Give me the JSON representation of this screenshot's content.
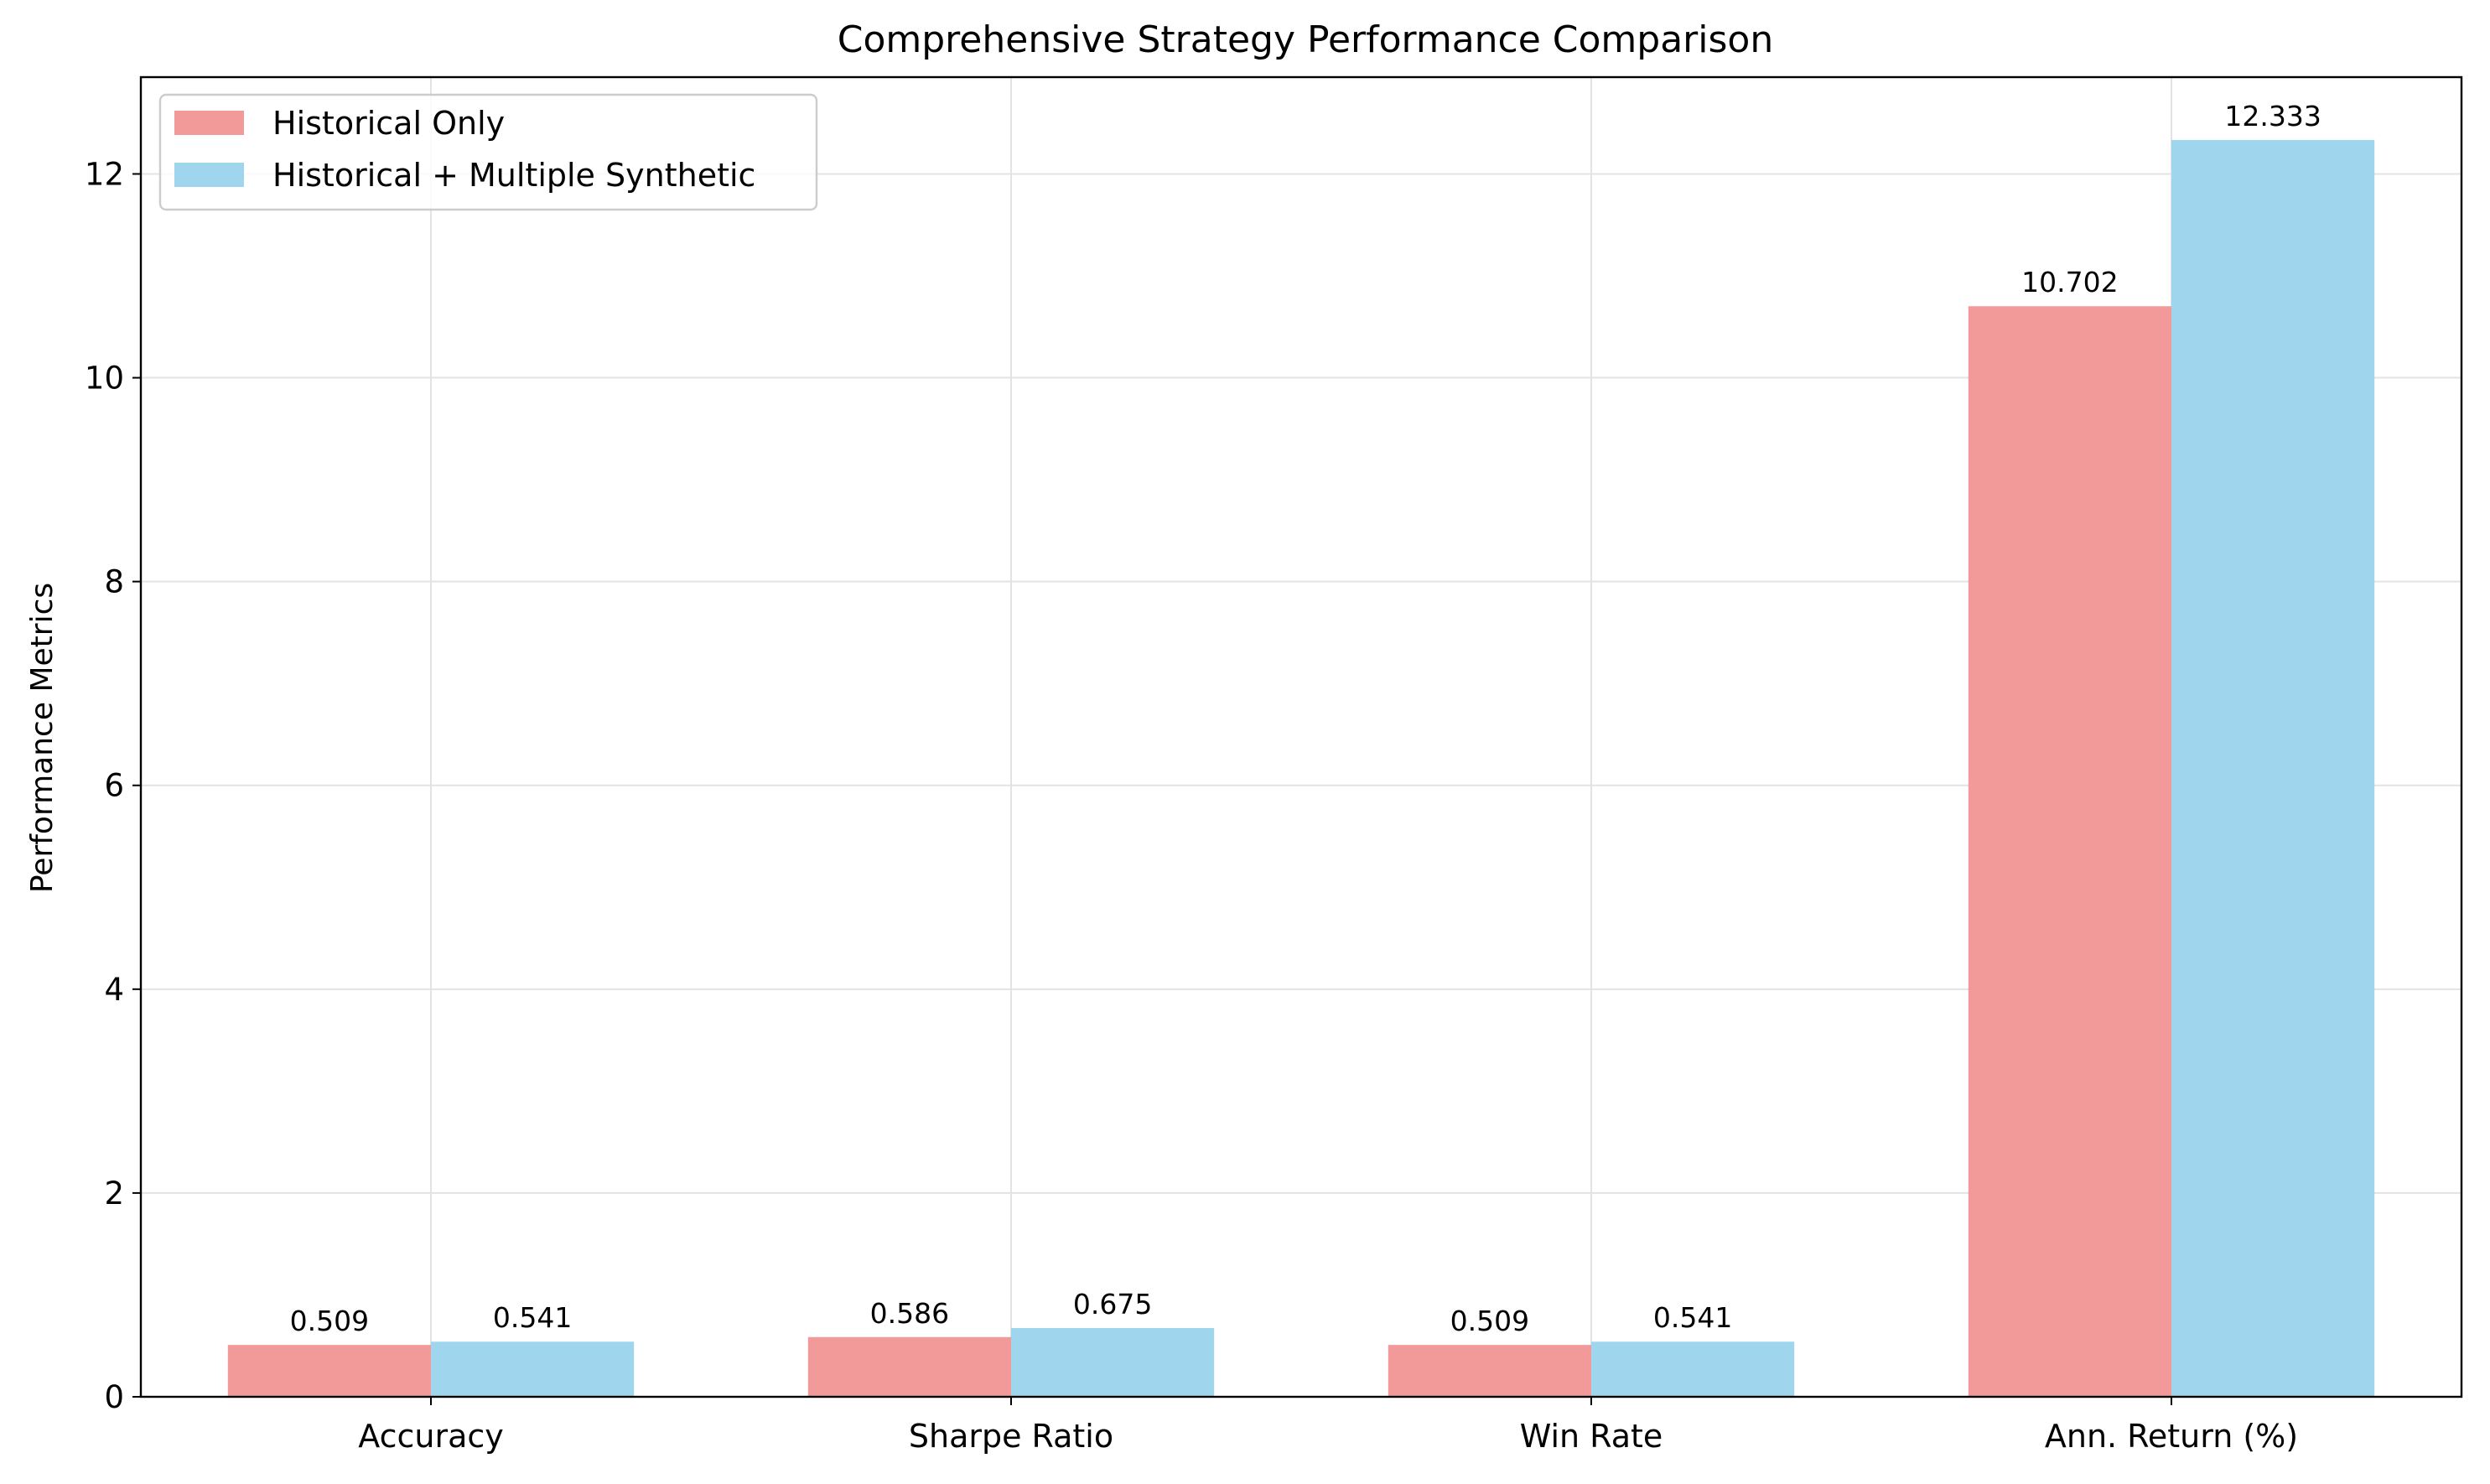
{
  "chart_data": {
    "type": "bar",
    "title": "Comprehensive Strategy Performance Comparison",
    "xlabel": "",
    "ylabel": "Performance Metrics",
    "categories": [
      "Accuracy",
      "Sharpe Ratio",
      "Win Rate",
      "Ann. Return (%)"
    ],
    "series": [
      {
        "name": "Historical Only",
        "values": [
          0.509,
          0.586,
          0.509,
          10.702
        ],
        "labels": [
          "0.509",
          "0.586",
          "0.509",
          "10.702"
        ],
        "color": "#f19a99"
      },
      {
        "name": "Historical + Multiple Synthetic",
        "values": [
          0.541,
          0.675,
          0.541,
          12.333
        ],
        "labels": [
          "0.541",
          "0.675",
          "0.541",
          "12.333"
        ],
        "color": "#a0d6ed"
      }
    ],
    "ylim": [
      0,
      12.95
    ],
    "yticks": [
      0,
      2,
      4,
      6,
      8,
      10,
      12
    ],
    "grid": true,
    "legend_position": "upper left"
  }
}
